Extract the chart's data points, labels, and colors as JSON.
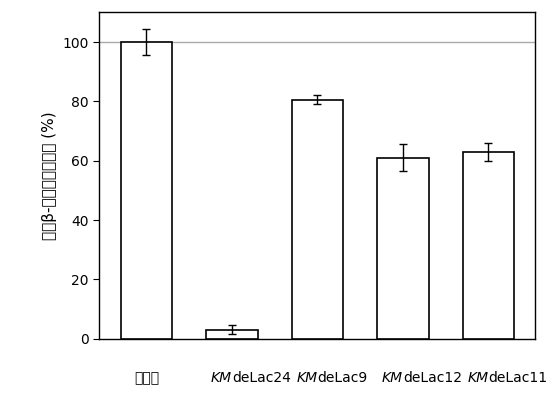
{
  "categories": [
    "野生菌",
    "KMdeLac24",
    "KMdeLac9",
    "KMdeLac12",
    "KMdeLac11"
  ],
  "values": [
    100.0,
    3.0,
    80.5,
    61.0,
    63.0
  ],
  "errors": [
    4.5,
    1.5,
    1.5,
    4.5,
    3.0
  ],
  "bar_color": "#ffffff",
  "bar_edgecolor": "#000000",
  "ylabel": "相对β-半乳糖苷酶活力 (%)",
  "ylim": [
    0,
    110
  ],
  "yticks": [
    0,
    20,
    40,
    60,
    80,
    100
  ],
  "hline_y": 100,
  "hline_color": "#aaaaaa",
  "bar_width": 0.6,
  "figsize": [
    5.52,
    4.13
  ],
  "dpi": 100,
  "italic_part": "KM",
  "normal_parts": [
    "deLac24",
    "deLac9",
    "deLac12",
    "deLac11"
  ],
  "first_label": "野生菌",
  "fontsize_ticks": 10,
  "fontsize_ylabel": 11
}
